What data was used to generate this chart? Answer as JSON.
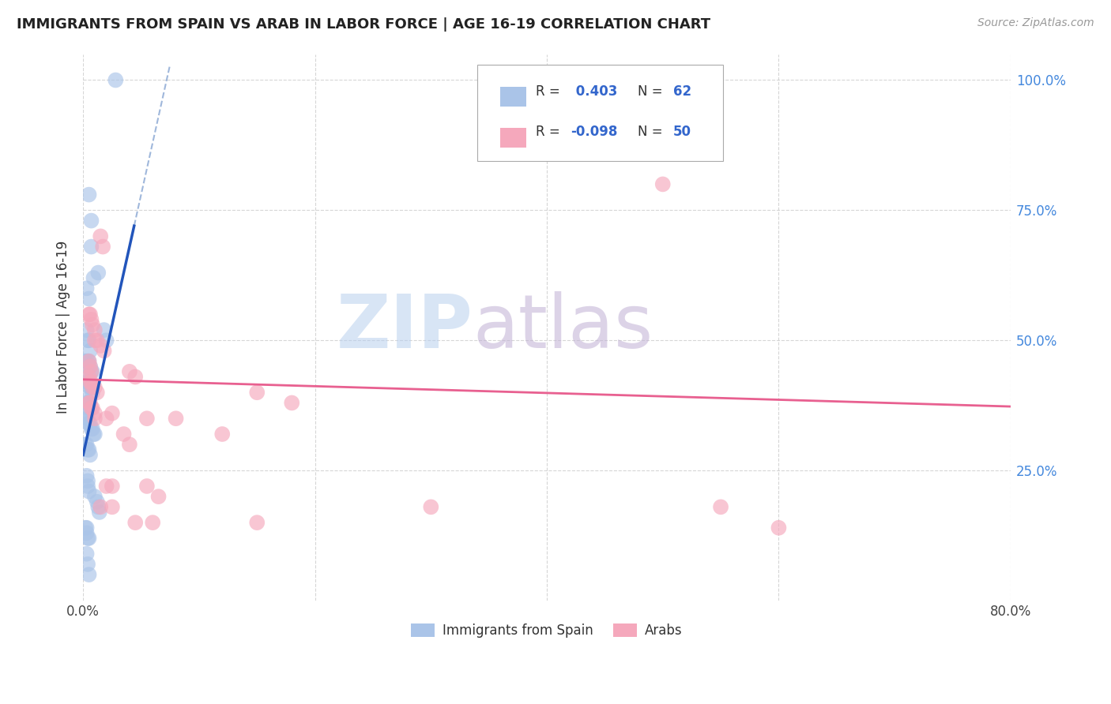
{
  "title": "IMMIGRANTS FROM SPAIN VS ARAB IN LABOR FORCE | AGE 16-19 CORRELATION CHART",
  "source": "Source: ZipAtlas.com",
  "ylabel_label": "In Labor Force | Age 16-19",
  "legend_label1": "Immigrants from Spain",
  "legend_label2": "Arabs",
  "r_spain": "0.403",
  "n_spain": "62",
  "r_arab": "-0.098",
  "n_arab": "50",
  "spain_color": "#aac4e8",
  "arab_color": "#f5a8bc",
  "spain_line_color": "#2255bb",
  "arab_line_color": "#e86090",
  "watermark_zip": "ZIP",
  "watermark_atlas": "atlas",
  "watermark_zip_color": "#b8d0ee",
  "watermark_atlas_color": "#c8b8d8",
  "background_color": "#ffffff",
  "grid_color": "#cccccc",
  "xlim": [
    0.0,
    0.8
  ],
  "ylim": [
    0.0,
    1.05
  ],
  "spain_x": [
    0.028,
    0.005,
    0.007,
    0.013,
    0.003,
    0.005,
    0.018,
    0.02,
    0.003,
    0.004,
    0.005,
    0.006,
    0.002,
    0.003,
    0.004,
    0.005,
    0.006,
    0.007,
    0.008,
    0.002,
    0.003,
    0.004,
    0.005,
    0.006,
    0.007,
    0.008,
    0.002,
    0.003,
    0.004,
    0.005,
    0.002,
    0.003,
    0.004,
    0.005,
    0.006,
    0.007,
    0.008,
    0.009,
    0.01,
    0.002,
    0.003,
    0.004,
    0.005,
    0.006,
    0.003,
    0.004,
    0.004,
    0.005,
    0.01,
    0.012,
    0.013,
    0.014,
    0.002,
    0.003,
    0.003,
    0.004,
    0.005,
    0.003,
    0.004,
    0.005,
    0.007,
    0.009
  ],
  "spain_y": [
    1.0,
    0.78,
    0.73,
    0.63,
    0.6,
    0.58,
    0.52,
    0.5,
    0.52,
    0.5,
    0.5,
    0.48,
    0.46,
    0.46,
    0.46,
    0.46,
    0.45,
    0.44,
    0.44,
    0.43,
    0.42,
    0.42,
    0.42,
    0.41,
    0.41,
    0.4,
    0.39,
    0.38,
    0.38,
    0.37,
    0.36,
    0.35,
    0.35,
    0.34,
    0.34,
    0.33,
    0.33,
    0.32,
    0.32,
    0.3,
    0.3,
    0.29,
    0.29,
    0.28,
    0.24,
    0.23,
    0.22,
    0.21,
    0.2,
    0.19,
    0.18,
    0.17,
    0.14,
    0.14,
    0.13,
    0.12,
    0.12,
    0.09,
    0.07,
    0.05,
    0.68,
    0.62
  ],
  "arab_x": [
    0.5,
    0.015,
    0.017,
    0.005,
    0.006,
    0.007,
    0.008,
    0.01,
    0.01,
    0.012,
    0.015,
    0.018,
    0.005,
    0.006,
    0.007,
    0.04,
    0.045,
    0.005,
    0.006,
    0.007,
    0.008,
    0.01,
    0.012,
    0.15,
    0.18,
    0.005,
    0.006,
    0.007,
    0.008,
    0.01,
    0.025,
    0.01,
    0.02,
    0.055,
    0.035,
    0.04,
    0.02,
    0.025,
    0.055,
    0.065,
    0.015,
    0.025,
    0.3,
    0.55,
    0.045,
    0.06,
    0.15,
    0.6,
    0.08,
    0.12
  ],
  "arab_y": [
    0.8,
    0.7,
    0.68,
    0.55,
    0.55,
    0.54,
    0.53,
    0.52,
    0.5,
    0.5,
    0.49,
    0.48,
    0.46,
    0.45,
    0.44,
    0.44,
    0.43,
    0.43,
    0.42,
    0.42,
    0.41,
    0.41,
    0.4,
    0.4,
    0.38,
    0.38,
    0.38,
    0.37,
    0.37,
    0.36,
    0.36,
    0.35,
    0.35,
    0.35,
    0.32,
    0.3,
    0.22,
    0.22,
    0.22,
    0.2,
    0.18,
    0.18,
    0.18,
    0.18,
    0.15,
    0.15,
    0.15,
    0.14,
    0.35,
    0.32
  ]
}
